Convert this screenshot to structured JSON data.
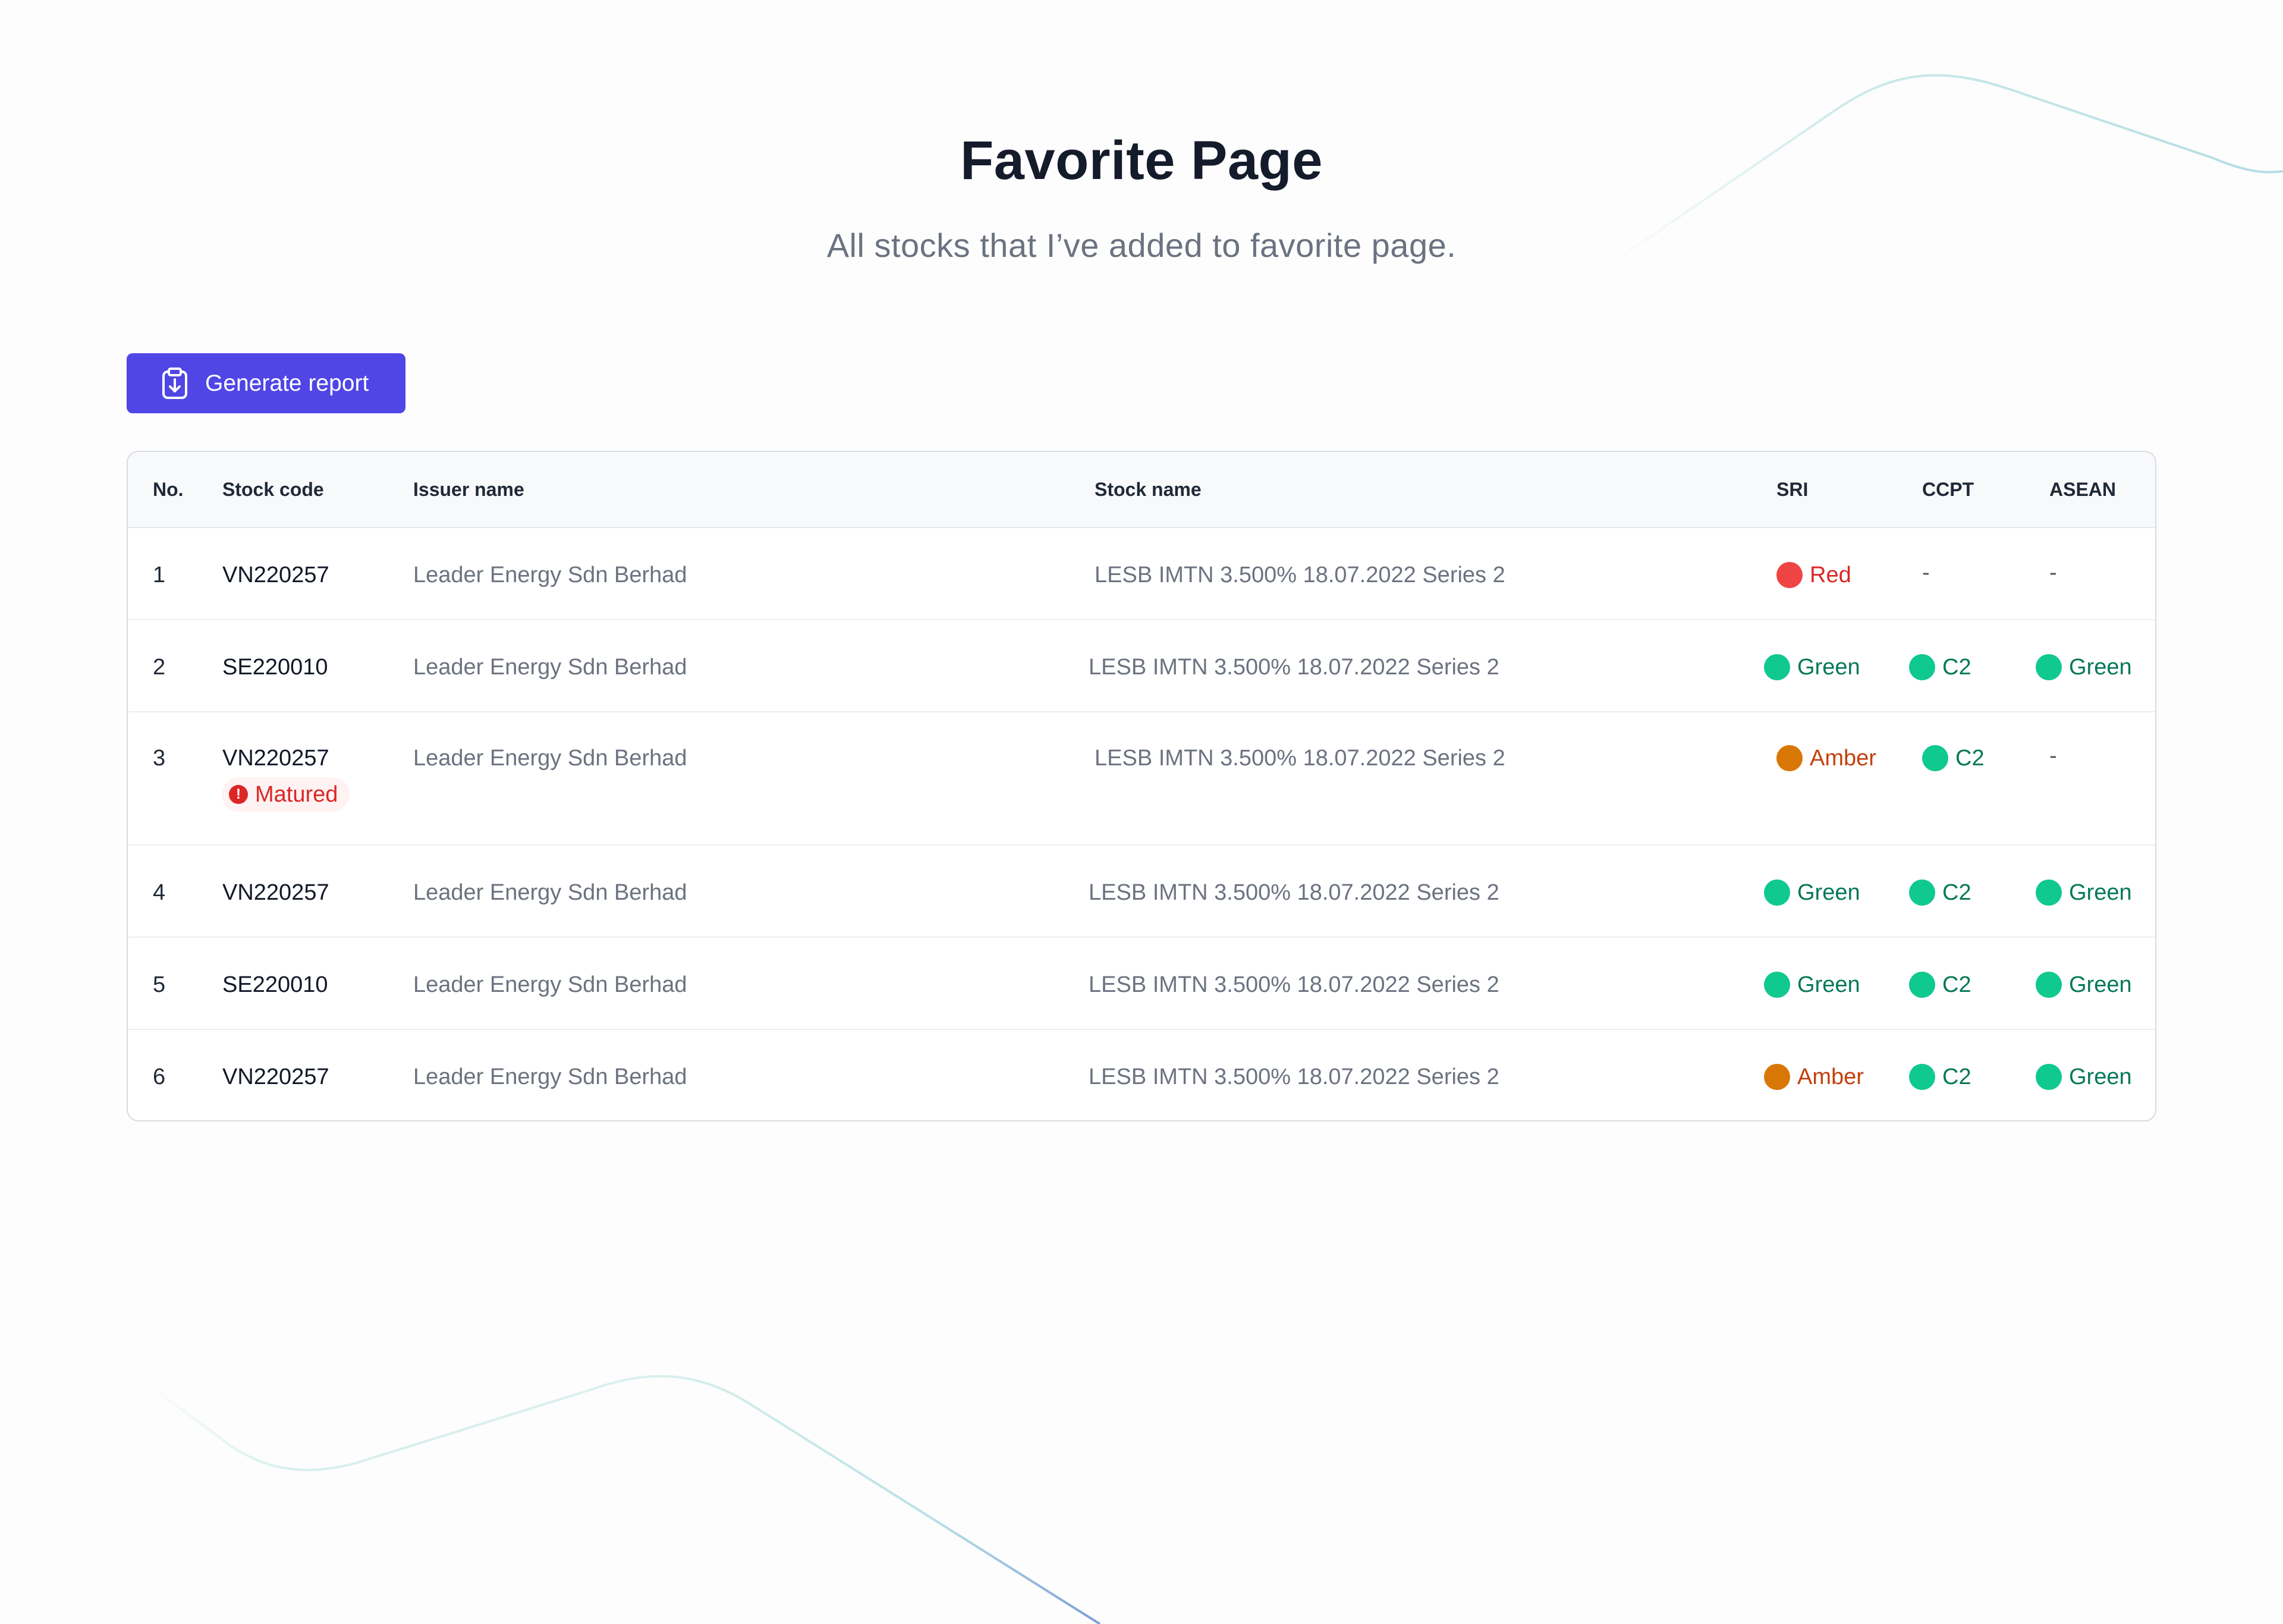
{
  "header": {
    "title": "Favorite Page",
    "subtitle": "All stocks that I’ve added to favorite page."
  },
  "toolbar": {
    "generate_label": "Generate report",
    "generate_icon": "clipboard-download-icon"
  },
  "table": {
    "columns": [
      "No.",
      "Stock code",
      "Issuer name",
      "Stock name",
      "SRI",
      "CCPT",
      "ASEAN"
    ],
    "rows": [
      {
        "no": "1",
        "code": "VN220257",
        "issuer": "Leader Energy Sdn Berhad",
        "stock": "LESB IMTN 3.500% 18.07.2022 Series 2",
        "sri": "Red",
        "ccpt": "-",
        "asean": "-"
      },
      {
        "no": "2",
        "code": "SE220010",
        "issuer": "Leader Energy Sdn Berhad",
        "stock": "LESB IMTN 3.500% 18.07.2022 Series 2",
        "sri": "Green",
        "ccpt": "C2",
        "asean": "Green"
      },
      {
        "no": "3",
        "code": "VN220257",
        "badge": "Matured",
        "issuer": "Leader Energy Sdn Berhad",
        "stock": "LESB IMTN 3.500% 18.07.2022 Series 2",
        "sri": "Amber",
        "ccpt": "C2",
        "asean": "-"
      },
      {
        "no": "4",
        "code": "VN220257",
        "issuer": "Leader Energy Sdn Berhad",
        "stock": "LESB IMTN 3.500% 18.07.2022 Series 2",
        "sri": "Green",
        "ccpt": "C2",
        "asean": "Green"
      },
      {
        "no": "5",
        "code": "SE220010",
        "issuer": "Leader Energy Sdn Berhad",
        "stock": "LESB IMTN 3.500% 18.07.2022 Series 2",
        "sri": "Green",
        "ccpt": "C2",
        "asean": "Green"
      },
      {
        "no": "6",
        "code": "VN220257",
        "issuer": "Leader Energy Sdn Berhad",
        "stock": "LESB IMTN 3.500% 18.07.2022 Series 2",
        "sri": "Amber",
        "ccpt": "C2",
        "asean": "Green"
      }
    ]
  },
  "colors": {
    "accent": "#4f46e5",
    "status_red_dot": "#ef4444",
    "status_red_text": "#dc2626",
    "status_green_dot": "#10c98f",
    "status_green_text": "#047857",
    "status_amber_dot": "#d97706",
    "status_amber_text": "#c2410c"
  }
}
